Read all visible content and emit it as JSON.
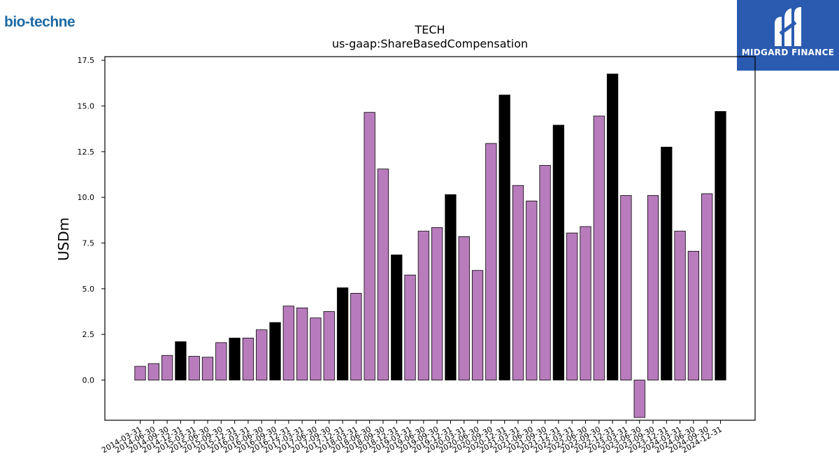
{
  "logos": {
    "left_text": "bio-techne",
    "right_text": "MIDGARD FINANCE",
    "right_bg": "#2a5bb0"
  },
  "chart_data": {
    "type": "bar",
    "title": "TECH",
    "subtitle": "us-gaap:ShareBasedCompensation",
    "xlabel": "",
    "ylabel": "USDm",
    "ylim": [
      -2.2,
      17.7
    ],
    "yticks": [
      "0.0",
      "2.5",
      "5.0",
      "7.5",
      "10.0",
      "12.5",
      "15.0",
      "17.5"
    ],
    "grid": false,
    "colors": {
      "quarter": "#b87cbd",
      "year_end": "#000000",
      "edge": "#000000"
    },
    "categories": [
      "2014-03-31",
      "2014-06-30",
      "2014-09-30",
      "2014-12-31",
      "2015-03-31",
      "2015-06-30",
      "2015-09-30",
      "2015-12-31",
      "2016-03-31",
      "2016-06-30",
      "2016-09-30",
      "2016-12-31",
      "2017-03-31",
      "2017-06-30",
      "2017-09-30",
      "2017-12-31",
      "2018-03-31",
      "2018-06-30",
      "2018-09-30",
      "2018-12-31",
      "2019-03-31",
      "2019-06-30",
      "2019-09-30",
      "2019-12-31",
      "2020-03-31",
      "2020-06-30",
      "2020-09-30",
      "2020-12-31",
      "2021-03-31",
      "2021-06-30",
      "2021-09-30",
      "2021-12-31",
      "2022-03-31",
      "2022-06-30",
      "2022-09-30",
      "2022-12-31",
      "2023-03-31",
      "2023-06-30",
      "2023-09-30",
      "2023-12-31",
      "2024-03-31",
      "2024-06-30",
      "2024-09-30",
      "2024-12-31"
    ],
    "values": [
      0.75,
      0.9,
      1.35,
      2.1,
      1.3,
      1.25,
      2.05,
      2.3,
      2.3,
      2.75,
      3.15,
      4.05,
      3.95,
      3.4,
      3.75,
      5.05,
      4.75,
      14.65,
      11.55,
      6.85,
      5.75,
      8.15,
      8.35,
      10.15,
      7.85,
      6.0,
      12.95,
      15.6,
      10.65,
      9.8,
      11.75,
      13.95,
      8.05,
      8.4,
      14.45,
      16.75,
      10.1,
      -2.05,
      10.1,
      12.75,
      8.15,
      7.05,
      10.2,
      14.7
    ],
    "highlight": [
      false,
      false,
      false,
      true,
      false,
      false,
      false,
      true,
      false,
      false,
      true,
      false,
      false,
      false,
      false,
      true,
      false,
      false,
      false,
      true,
      false,
      false,
      false,
      true,
      false,
      false,
      false,
      true,
      false,
      false,
      false,
      true,
      false,
      false,
      false,
      true,
      false,
      false,
      false,
      true,
      false,
      false,
      false,
      true
    ]
  }
}
